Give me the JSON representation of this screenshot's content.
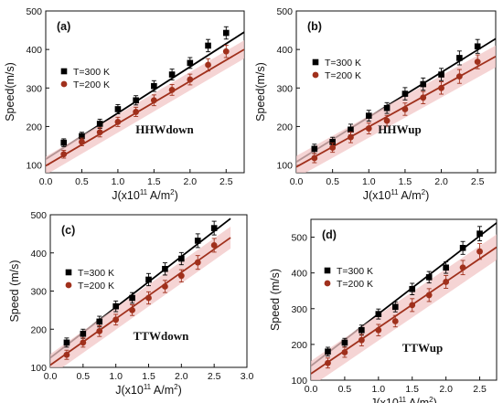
{
  "chart_data": [
    {
      "type": "scatter",
      "panel_label": "(a)",
      "annotation": "HHWdown",
      "xlabel": "J(x10",
      "xlabel_sup": "11",
      "xlabel_unit": "A/m",
      "xlabel_unit_sup": "2",
      "ylabel": "Speed(m/s)",
      "xlim": [
        0.0,
        2.75
      ],
      "ylim": [
        80,
        500
      ],
      "xticks": [
        "0.0",
        "0.5",
        "1.0",
        "1.5",
        "2.0",
        "2.5"
      ],
      "yticks": [
        "100",
        "200",
        "300",
        "400",
        "500"
      ],
      "series": [
        {
          "name": "T=300 K",
          "color": "#000000",
          "marker": "square",
          "x": [
            0.25,
            0.5,
            0.75,
            1.0,
            1.25,
            1.5,
            1.75,
            2.0,
            2.25,
            2.5
          ],
          "y": [
            158,
            175,
            207,
            245,
            268,
            305,
            335,
            365,
            410,
            443
          ],
          "err": [
            10,
            10,
            12,
            12,
            12,
            14,
            14,
            14,
            16,
            16
          ],
          "fit": [
            [
              0.0,
              115
            ],
            [
              2.75,
              445
            ]
          ]
        },
        {
          "name": "T=200 K",
          "color": "#a0301c",
          "marker": "circle",
          "x": [
            0.25,
            0.5,
            0.75,
            1.0,
            1.25,
            1.5,
            1.75,
            2.0,
            2.25,
            2.5
          ],
          "y": [
            128,
            160,
            185,
            212,
            238,
            268,
            295,
            322,
            360,
            395
          ],
          "err": [
            10,
            10,
            12,
            12,
            12,
            14,
            14,
            14,
            16,
            16
          ],
          "fit": [
            [
              0.0,
              98
            ],
            [
              2.75,
              400
            ]
          ]
        }
      ]
    },
    {
      "type": "scatter",
      "panel_label": "(b)",
      "annotation": "HHWup",
      "xlabel": "J(x10",
      "xlabel_sup": "11",
      "xlabel_unit": "A/m",
      "xlabel_unit_sup": "2",
      "ylabel": "Speed(m/s)",
      "xlim": [
        0.0,
        2.75
      ],
      "ylim": [
        80,
        500
      ],
      "xticks": [
        "0.0",
        "0.5",
        "1.0",
        "1.5",
        "2.0",
        "2.5"
      ],
      "yticks": [
        "100",
        "200",
        "300",
        "400",
        "500"
      ],
      "series": [
        {
          "name": "T=300 K",
          "color": "#000000",
          "marker": "square",
          "x": [
            0.25,
            0.5,
            0.75,
            1.0,
            1.25,
            1.5,
            1.75,
            2.0,
            2.25,
            2.5
          ],
          "y": [
            142,
            160,
            192,
            228,
            248,
            285,
            310,
            335,
            378,
            408
          ],
          "err": [
            12,
            12,
            14,
            14,
            14,
            16,
            16,
            16,
            18,
            18
          ],
          "fit": [
            [
              0.0,
              108
            ],
            [
              2.75,
              428
            ]
          ]
        },
        {
          "name": "T=200 K",
          "color": "#a0301c",
          "marker": "circle",
          "x": [
            0.25,
            0.5,
            0.75,
            1.0,
            1.25,
            1.5,
            1.75,
            2.0,
            2.25,
            2.5
          ],
          "y": [
            118,
            145,
            172,
            195,
            215,
            245,
            275,
            300,
            330,
            368
          ],
          "err": [
            12,
            12,
            14,
            14,
            14,
            16,
            16,
            16,
            18,
            18
          ],
          "fit": [
            [
              0.0,
              95
            ],
            [
              2.75,
              382
            ]
          ]
        }
      ]
    },
    {
      "type": "scatter",
      "panel_label": "(c)",
      "annotation": "TTWdown",
      "xlabel": "J(x10",
      "xlabel_sup": "11",
      "xlabel_unit": "A/m",
      "xlabel_unit_sup": "2",
      "ylabel": "Speed (m/s)",
      "xlim": [
        0.0,
        3.0
      ],
      "ylim": [
        100,
        500
      ],
      "xticks": [
        "0.0",
        "0.5",
        "1.0",
        "1.5",
        "2.0",
        "2.5",
        "3.0"
      ],
      "yticks": [
        "100",
        "200",
        "300",
        "400",
        "500"
      ],
      "series": [
        {
          "name": "T=300 K",
          "color": "#000000",
          "marker": "square",
          "x": [
            0.25,
            0.5,
            0.75,
            1.0,
            1.25,
            1.5,
            1.75,
            2.0,
            2.25,
            2.5
          ],
          "y": [
            165,
            188,
            220,
            260,
            282,
            330,
            358,
            385,
            432,
            465
          ],
          "err": [
            12,
            12,
            14,
            14,
            14,
            16,
            16,
            16,
            18,
            18
          ],
          "fit": [
            [
              0.0,
              125
            ],
            [
              2.75,
              490
            ]
          ]
        },
        {
          "name": "T=200 K",
          "color": "#a0301c",
          "marker": "circle",
          "x": [
            0.25,
            0.5,
            0.75,
            1.0,
            1.25,
            1.5,
            1.75,
            2.0,
            2.25,
            2.5
          ],
          "y": [
            133,
            165,
            195,
            225,
            250,
            282,
            312,
            340,
            375,
            420
          ],
          "err": [
            12,
            12,
            14,
            14,
            14,
            16,
            16,
            16,
            18,
            18
          ],
          "fit": [
            [
              0.0,
              106
            ],
            [
              2.75,
              440
            ]
          ]
        }
      ]
    },
    {
      "type": "scatter",
      "panel_label": "(d)",
      "annotation": "TTWup",
      "xlabel": "J(x10",
      "xlabel_sup": "11",
      "xlabel_unit": "A/m",
      "xlabel_unit_sup": "2",
      "ylabel": "Speed (m/s)",
      "xlim": [
        0.0,
        2.75
      ],
      "ylim": [
        100,
        550
      ],
      "xticks": [
        "0.0",
        "0.5",
        "1.0",
        "1.5",
        "2.0",
        "2.5"
      ],
      "yticks": [
        "100",
        "200",
        "300",
        "400",
        "500"
      ],
      "series": [
        {
          "name": "T=300 K",
          "color": "#000000",
          "marker": "square",
          "x": [
            0.25,
            0.5,
            0.75,
            1.0,
            1.25,
            1.5,
            1.75,
            2.0,
            2.25,
            2.5
          ],
          "y": [
            180,
            205,
            240,
            285,
            305,
            355,
            388,
            415,
            470,
            510
          ],
          "err": [
            12,
            12,
            14,
            14,
            14,
            16,
            16,
            16,
            18,
            20
          ],
          "fit": [
            [
              0.0,
              140
            ],
            [
              2.75,
              540
            ]
          ]
        },
        {
          "name": "T=200 K",
          "color": "#a0301c",
          "marker": "circle",
          "x": [
            0.25,
            0.5,
            0.75,
            1.0,
            1.25,
            1.5,
            1.75,
            2.0,
            2.25,
            2.5
          ],
          "y": [
            148,
            178,
            212,
            240,
            265,
            310,
            338,
            375,
            415,
            460
          ],
          "err": [
            14,
            14,
            16,
            16,
            16,
            18,
            18,
            18,
            20,
            22
          ],
          "fit": [
            [
              0.0,
              118
            ],
            [
              2.75,
              472
            ]
          ]
        }
      ]
    }
  ],
  "colors": {
    "series_300K": "#000000",
    "series_200K": "#a0301c",
    "error_band": "#f2c6c6"
  }
}
